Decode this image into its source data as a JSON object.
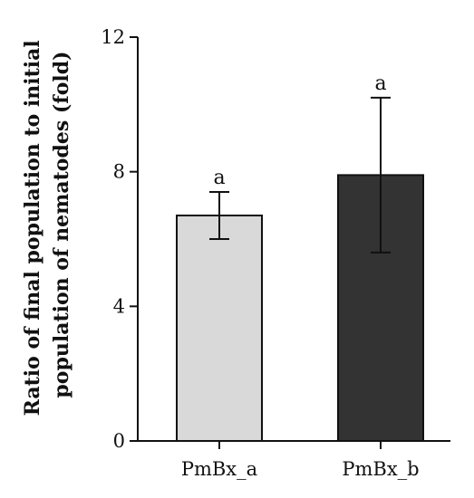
{
  "chart_data": {
    "type": "bar",
    "categories": [
      "PmBx_a",
      "PmBx_b"
    ],
    "values": [
      6.7,
      7.9
    ],
    "errors": [
      0.7,
      2.3
    ],
    "significance_labels": [
      "a",
      "a"
    ],
    "bar_colors": [
      "#d9d9d9",
      "#333333"
    ],
    "ylabel_lines": [
      "Ratio of final population to initial",
      "population of nematodes (fold)"
    ],
    "ylim": [
      0,
      12
    ],
    "yticks": [
      0,
      4,
      8,
      12
    ],
    "grid": false,
    "legend": "none"
  }
}
